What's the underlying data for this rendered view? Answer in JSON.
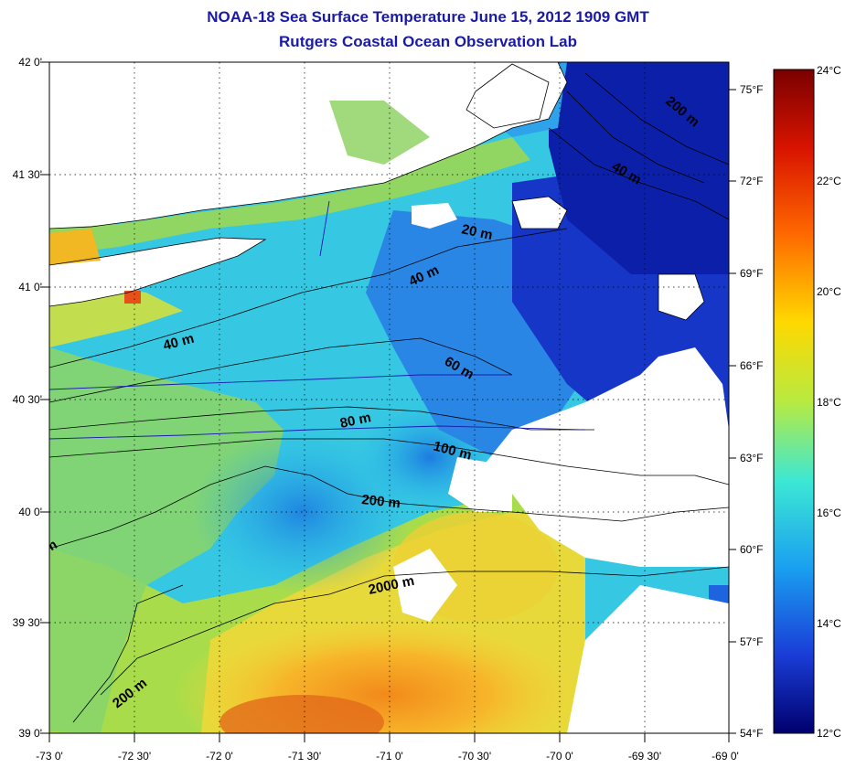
{
  "title": {
    "line1": "NOAA-18 Sea Surface Temperature June 15, 2012 1909 GMT",
    "line2": "Rutgers Coastal Ocean Observation Lab"
  },
  "lat_labels": [
    "42 0'",
    "41 30'",
    "41 0'",
    "40 30'",
    "40 0'",
    "39 30'",
    "39 0'"
  ],
  "lon_labels": [
    "-73 0'",
    "-72 30'",
    "-72 0'",
    "-71 30'",
    "-71 0'",
    "-70 30'",
    "-70 0'",
    "-69 30'",
    "-69 0'"
  ],
  "fahrenheit_labels": [
    "75°F",
    "72°F",
    "69°F",
    "66°F",
    "63°F",
    "60°F",
    "57°F",
    "54°F"
  ],
  "celsius_labels": [
    "24°C",
    "22°C",
    "20°C",
    "18°C",
    "16°C",
    "14°C",
    "12°C"
  ],
  "depth_labels": {
    "d200_ne": "200 m",
    "d40_ne": "40 m",
    "d20": "20 m",
    "d40_mid": "40 m",
    "d40_w": "40 m",
    "d60": "60 m",
    "d80": "80 m",
    "d100": "100 m",
    "d200_mid": "200 m",
    "d2000": "2000 m",
    "d200_sw": "200 m",
    "d_m_edge": "m"
  },
  "colors": {
    "title": "#1a1aa8",
    "land": "#ffffff",
    "cloud": "#ffffff",
    "scale_top": "#7a0000",
    "scale_bottom": "#00006e"
  }
}
